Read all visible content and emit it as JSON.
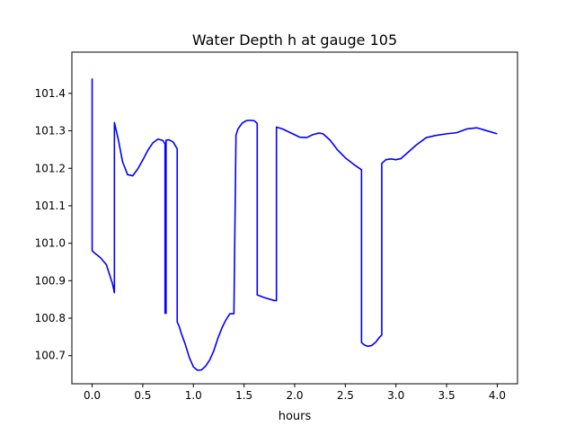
{
  "chart_data": {
    "type": "line",
    "title": "Water Depth h at gauge 105",
    "xlabel": "hours",
    "ylabel": "",
    "xlim": [
      -0.2,
      4.2
    ],
    "ylim": [
      100.625,
      101.51
    ],
    "grid": false,
    "legend": "none",
    "xticks": [
      0.0,
      0.5,
      1.0,
      1.5,
      2.0,
      2.5,
      3.0,
      3.5,
      4.0
    ],
    "xtick_labels": [
      "0.0",
      "0.5",
      "1.0",
      "1.5",
      "2.0",
      "2.5",
      "3.0",
      "3.5",
      "4.0"
    ],
    "yticks": [
      100.7,
      100.8,
      100.9,
      101.0,
      101.1,
      101.2,
      101.3,
      101.4
    ],
    "ytick_labels": [
      "100.7",
      "100.8",
      "100.9",
      "101.0",
      "101.1",
      "101.2",
      "101.3",
      "101.4"
    ],
    "series": [
      {
        "color": "#0000ff",
        "x": [
          0.0,
          0.0,
          0.02,
          0.08,
          0.14,
          0.2,
          0.22,
          0.22,
          0.26,
          0.3,
          0.35,
          0.4,
          0.45,
          0.5,
          0.55,
          0.6,
          0.65,
          0.7,
          0.72,
          0.72,
          0.73,
          0.73,
          0.76,
          0.8,
          0.84,
          0.84,
          0.86,
          0.88,
          0.92,
          0.96,
          1.0,
          1.04,
          1.08,
          1.12,
          1.16,
          1.2,
          1.24,
          1.28,
          1.32,
          1.36,
          1.4,
          1.42,
          1.42,
          1.44,
          1.48,
          1.52,
          1.56,
          1.6,
          1.63,
          1.63,
          1.7,
          1.8,
          1.82,
          1.82,
          1.88,
          1.95,
          2.05,
          2.12,
          2.18,
          2.24,
          2.28,
          2.35,
          2.42,
          2.5,
          2.58,
          2.66,
          2.66,
          2.69,
          2.72,
          2.76,
          2.8,
          2.84,
          2.86,
          2.86,
          2.9,
          2.95,
          3.0,
          3.05,
          3.1,
          3.2,
          3.3,
          3.4,
          3.5,
          3.6,
          3.7,
          3.8,
          3.9,
          4.0
        ],
        "y": [
          101.44,
          100.98,
          100.975,
          100.962,
          100.943,
          100.893,
          100.868,
          101.322,
          101.275,
          101.218,
          101.183,
          101.18,
          101.198,
          101.222,
          101.248,
          101.268,
          101.278,
          101.274,
          101.265,
          100.813,
          100.813,
          101.275,
          101.276,
          101.27,
          101.252,
          100.79,
          100.778,
          100.76,
          100.73,
          100.695,
          100.67,
          100.661,
          100.662,
          100.672,
          100.688,
          100.712,
          100.745,
          100.773,
          100.795,
          100.812,
          100.812,
          101.278,
          101.288,
          101.305,
          101.32,
          101.327,
          101.328,
          101.327,
          101.32,
          100.862,
          100.855,
          100.847,
          100.847,
          101.31,
          101.305,
          101.296,
          101.283,
          101.282,
          101.29,
          101.294,
          101.292,
          101.275,
          101.25,
          101.228,
          101.211,
          101.196,
          100.735,
          100.728,
          100.725,
          100.727,
          100.736,
          100.75,
          100.755,
          101.213,
          101.223,
          101.225,
          101.223,
          101.226,
          101.238,
          101.262,
          101.282,
          101.288,
          101.292,
          101.295,
          101.305,
          101.308,
          101.3,
          101.292
        ]
      }
    ]
  }
}
